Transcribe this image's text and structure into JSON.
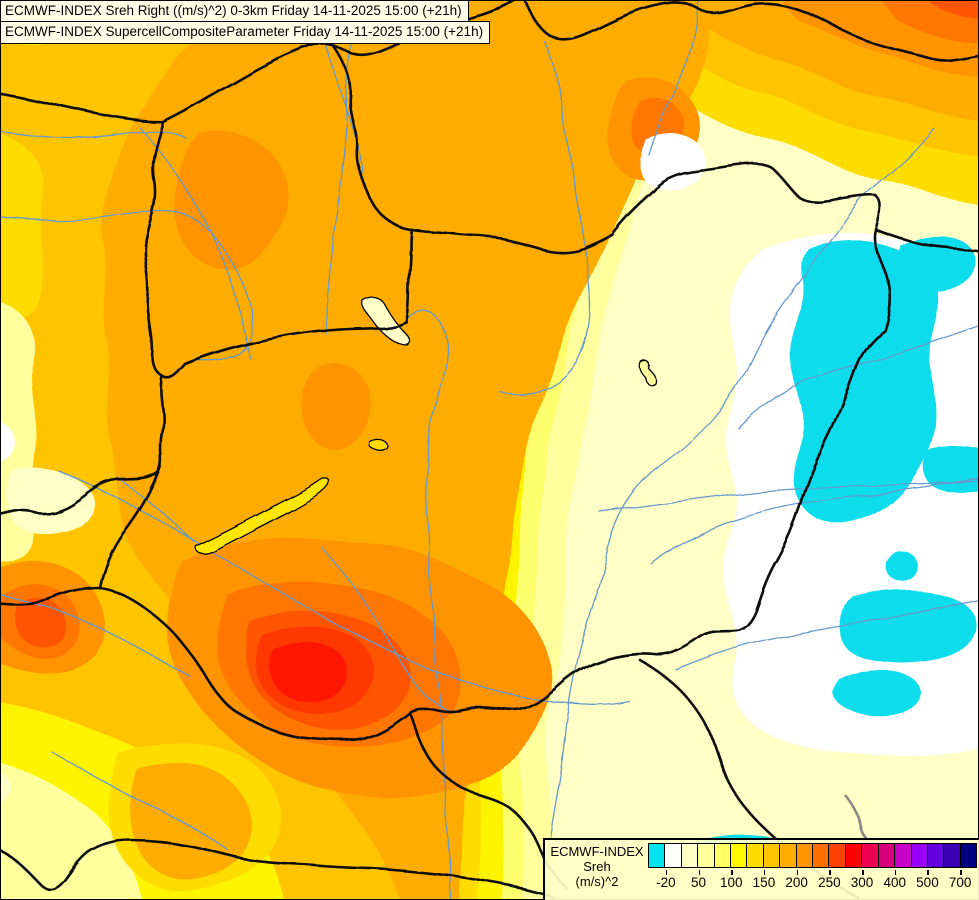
{
  "header": {
    "line1": "ECMWF-INDEX Sreh Right ((m/s)^2) 0-3km Friday 14-11-2025 15:00 (+21h)",
    "line2": "ECMWF-INDEX SupercellCompositeParameter Friday 14-11-2025 15:00 (+21h)"
  },
  "legend": {
    "product": "ECMWF-INDEX",
    "parameter": "Sreh",
    "unit": "(m/s)^2",
    "tick_labels": [
      "-20",
      "50",
      "100",
      "150",
      "200",
      "250",
      "300",
      "400",
      "500",
      "700"
    ],
    "colors": [
      "#00E4F0",
      "#FFFFFF",
      "#FFFFC6",
      "#FFFF9C",
      "#FFFF64",
      "#FFF800",
      "#FFDC00",
      "#FFC400",
      "#FFAC00",
      "#FF9300",
      "#FF6E00",
      "#FF4100",
      "#FF0000",
      "#F00050",
      "#D6007D",
      "#C800C8",
      "#9800FA",
      "#6400DC",
      "#3C00B4",
      "#000082"
    ]
  },
  "map": {
    "region": "Carpathian basin / Hungary and surroundings",
    "palette": {
      "cream": "#FFFFC6",
      "pale": "#FFFF9E",
      "pale2": "#FFFF6E",
      "yellow": "#FFF400",
      "gold": "#FFDC00",
      "amber": "#FFC400",
      "light_orange": "#FFAC00",
      "orange": "#FF9300",
      "deep_orange": "#FF7700",
      "red_orange": "#FF5500",
      "red_orange2": "#FF3800",
      "red": "#FF1200",
      "white": "#FFFFFF",
      "cyan": "#10DCEC",
      "river": "#6699CC",
      "border": "#0A0A0A",
      "border_gray": "#8A8A8A",
      "lake": "#FFE600"
    }
  }
}
